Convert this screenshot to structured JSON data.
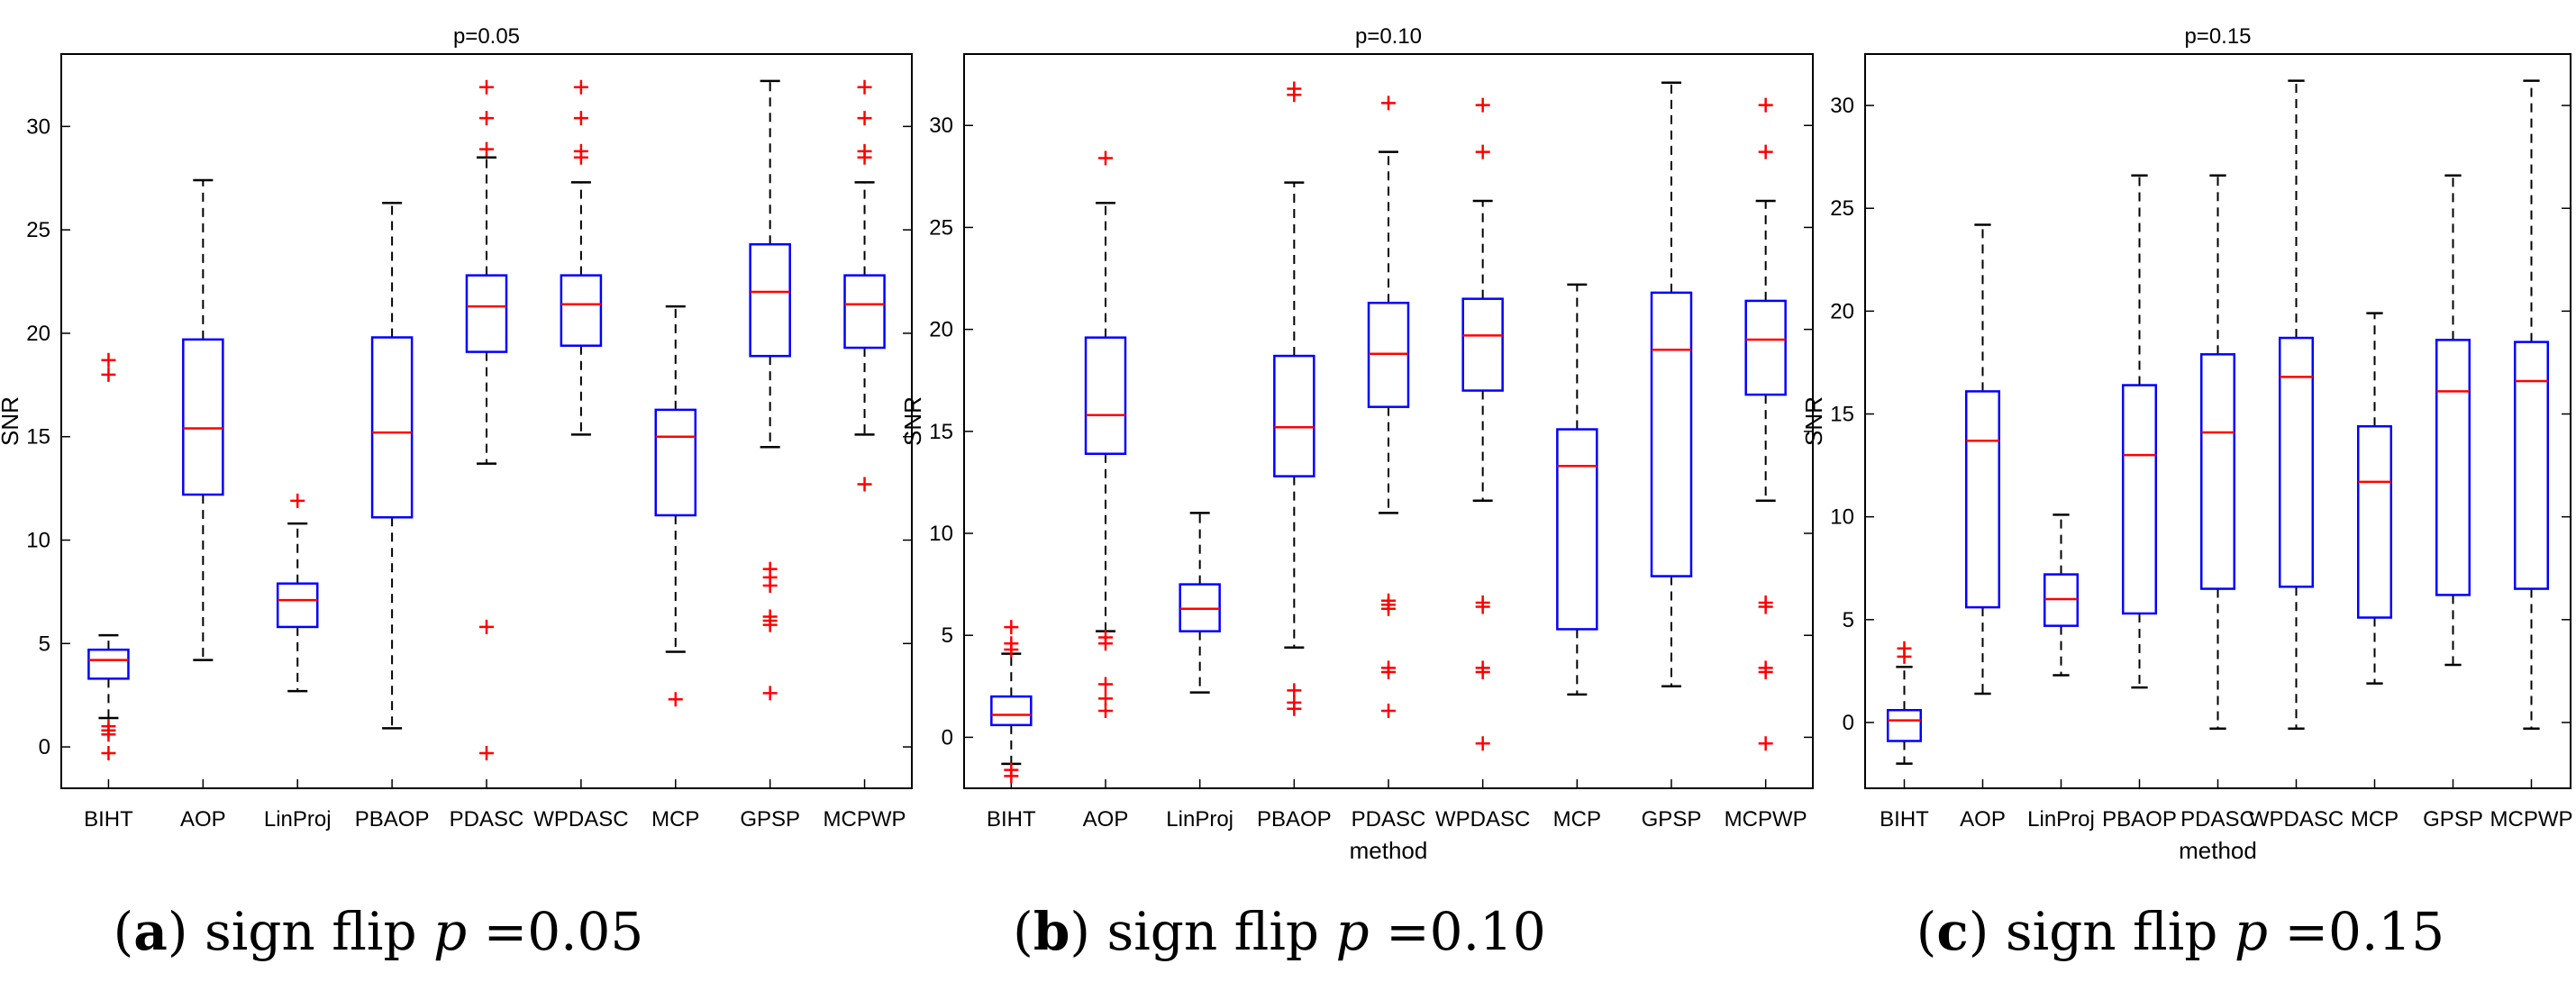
{
  "chart_data": [
    {
      "type": "boxplot",
      "title": "p=0.05",
      "xlabel": "",
      "ylabel": "SNR",
      "ylim": [
        -2,
        33.5
      ],
      "yticks": [
        0,
        5,
        10,
        15,
        20,
        25,
        30
      ],
      "categories": [
        "BIHT",
        "AOP",
        "LinProj",
        "PBAOP",
        "PDASC",
        "WPDASC",
        "MCP",
        "GPSP",
        "MCPWP"
      ],
      "boxes": [
        {
          "whisker_low": 1.4,
          "q1": 3.3,
          "median": 4.2,
          "q3": 4.7,
          "whisker_high": 5.4,
          "outliers": [
            18.7,
            18.0,
            1.0,
            0.8,
            0.6,
            -0.3
          ]
        },
        {
          "whisker_low": 4.2,
          "q1": 12.2,
          "median": 15.4,
          "q3": 19.7,
          "whisker_high": 27.4,
          "outliers": []
        },
        {
          "whisker_low": 2.7,
          "q1": 5.8,
          "median": 7.1,
          "q3": 7.9,
          "whisker_high": 10.8,
          "outliers": [
            11.9
          ]
        },
        {
          "whisker_low": 0.9,
          "q1": 11.1,
          "median": 15.2,
          "q3": 19.8,
          "whisker_high": 26.3,
          "outliers": []
        },
        {
          "whisker_low": 13.7,
          "q1": 19.1,
          "median": 21.3,
          "q3": 22.8,
          "whisker_high": 28.5,
          "outliers": [
            31.9,
            30.4,
            28.9,
            5.8,
            -0.3
          ]
        },
        {
          "whisker_low": 15.1,
          "q1": 19.4,
          "median": 21.4,
          "q3": 22.8,
          "whisker_high": 27.3,
          "outliers": [
            31.9,
            30.4,
            28.8,
            28.5
          ]
        },
        {
          "whisker_low": 4.6,
          "q1": 11.2,
          "median": 15.0,
          "q3": 16.3,
          "whisker_high": 21.3,
          "outliers": [
            2.3
          ]
        },
        {
          "whisker_low": 14.5,
          "q1": 18.9,
          "median": 22.0,
          "q3": 24.3,
          "whisker_high": 32.2,
          "outliers": [
            8.6,
            8.2,
            7.8,
            6.3,
            6.1,
            5.9,
            2.6
          ]
        },
        {
          "whisker_low": 15.1,
          "q1": 19.3,
          "median": 21.4,
          "q3": 22.8,
          "whisker_high": 27.3,
          "outliers": [
            31.9,
            30.4,
            28.8,
            28.5,
            12.7
          ]
        }
      ]
    },
    {
      "type": "boxplot",
      "title": "p=0.10",
      "xlabel": "method",
      "ylabel": "SNR",
      "ylim": [
        -2.5,
        33.5
      ],
      "yticks": [
        0,
        5,
        10,
        15,
        20,
        25,
        30
      ],
      "categories": [
        "BIHT",
        "AOP",
        "LinProj",
        "PBAOP",
        "PDASC",
        "WPDASC",
        "MCP",
        "GPSP",
        "MCPWP"
      ],
      "boxes": [
        {
          "whisker_low": -1.3,
          "q1": 0.6,
          "median": 1.1,
          "q3": 2.0,
          "whisker_high": 4.1,
          "outliers": [
            5.4,
            4.6,
            4.3,
            -1.6,
            -1.9
          ]
        },
        {
          "whisker_low": 5.2,
          "q1": 13.9,
          "median": 15.8,
          "q3": 19.6,
          "whisker_high": 26.2,
          "outliers": [
            28.4,
            4.9,
            4.6,
            2.6,
            1.9,
            1.3
          ]
        },
        {
          "whisker_low": 2.2,
          "q1": 5.2,
          "median": 6.3,
          "q3": 7.5,
          "whisker_high": 11.0,
          "outliers": []
        },
        {
          "whisker_low": 4.4,
          "q1": 12.8,
          "median": 15.2,
          "q3": 18.7,
          "whisker_high": 27.2,
          "outliers": [
            31.8,
            31.5,
            2.3,
            1.7,
            1.4
          ]
        },
        {
          "whisker_low": 11.0,
          "q1": 16.2,
          "median": 18.8,
          "q3": 21.3,
          "whisker_high": 28.7,
          "outliers": [
            31.1,
            6.7,
            6.5,
            6.3,
            3.4,
            3.2,
            1.3
          ]
        },
        {
          "whisker_low": 11.6,
          "q1": 17.0,
          "median": 19.7,
          "q3": 21.5,
          "whisker_high": 26.3,
          "outliers": [
            31.0,
            28.7,
            6.6,
            6.4,
            3.4,
            3.2,
            -0.3
          ]
        },
        {
          "whisker_low": 2.1,
          "q1": 5.3,
          "median": 13.3,
          "q3": 15.1,
          "whisker_high": 22.2,
          "outliers": []
        },
        {
          "whisker_low": 2.5,
          "q1": 7.9,
          "median": 19.0,
          "q3": 21.8,
          "whisker_high": 32.1,
          "outliers": []
        },
        {
          "whisker_low": 11.6,
          "q1": 16.8,
          "median": 19.5,
          "q3": 21.4,
          "whisker_high": 26.3,
          "outliers": [
            31.0,
            28.7,
            6.6,
            6.4,
            3.4,
            3.2,
            -0.3
          ]
        }
      ]
    },
    {
      "type": "boxplot",
      "title": "p=0.15",
      "xlabel": "method",
      "ylabel": "SNR",
      "ylim": [
        -3.2,
        32.5
      ],
      "yticks": [
        0,
        5,
        10,
        15,
        20,
        25,
        30
      ],
      "categories": [
        "BIHT",
        "AOP",
        "LinProj",
        "PBAOP",
        "PDASC",
        "WPDASC",
        "MCP",
        "GPSP",
        "MCPWP"
      ],
      "boxes": [
        {
          "whisker_low": -2.0,
          "q1": -0.9,
          "median": 0.1,
          "q3": 0.6,
          "whisker_high": 2.7,
          "outliers": [
            3.6,
            3.2
          ]
        },
        {
          "whisker_low": 1.4,
          "q1": 5.6,
          "median": 13.7,
          "q3": 16.1,
          "whisker_high": 24.2,
          "outliers": []
        },
        {
          "whisker_low": 2.3,
          "q1": 4.7,
          "median": 6.0,
          "q3": 7.2,
          "whisker_high": 10.1,
          "outliers": []
        },
        {
          "whisker_low": 1.7,
          "q1": 5.3,
          "median": 13.0,
          "q3": 16.4,
          "whisker_high": 26.6,
          "outliers": []
        },
        {
          "whisker_low": -0.3,
          "q1": 6.5,
          "median": 14.1,
          "q3": 17.9,
          "whisker_high": 26.6,
          "outliers": []
        },
        {
          "whisker_low": -0.3,
          "q1": 6.6,
          "median": 16.8,
          "q3": 18.7,
          "whisker_high": 31.2,
          "outliers": []
        },
        {
          "whisker_low": 1.9,
          "q1": 5.1,
          "median": 11.7,
          "q3": 14.4,
          "whisker_high": 19.9,
          "outliers": []
        },
        {
          "whisker_low": 2.8,
          "q1": 6.2,
          "median": 16.1,
          "q3": 18.6,
          "whisker_high": 26.6,
          "outliers": []
        },
        {
          "whisker_low": -0.3,
          "q1": 6.5,
          "median": 16.6,
          "q3": 18.5,
          "whisker_high": 31.2,
          "outliers": []
        }
      ]
    }
  ],
  "captions": [
    {
      "letter": "a",
      "text": "sign flip",
      "var": "p",
      "value": "=0.05"
    },
    {
      "letter": "b",
      "text": "sign flip",
      "var": "p",
      "value": "=0.10"
    },
    {
      "letter": "c",
      "text": "sign flip",
      "var": "p",
      "value": "=0.15"
    }
  ],
  "colors": {
    "box": "#0000ff",
    "median": "#ff0000",
    "outlier": "#ff0000",
    "whisker": "#000000",
    "axis": "#000000"
  }
}
